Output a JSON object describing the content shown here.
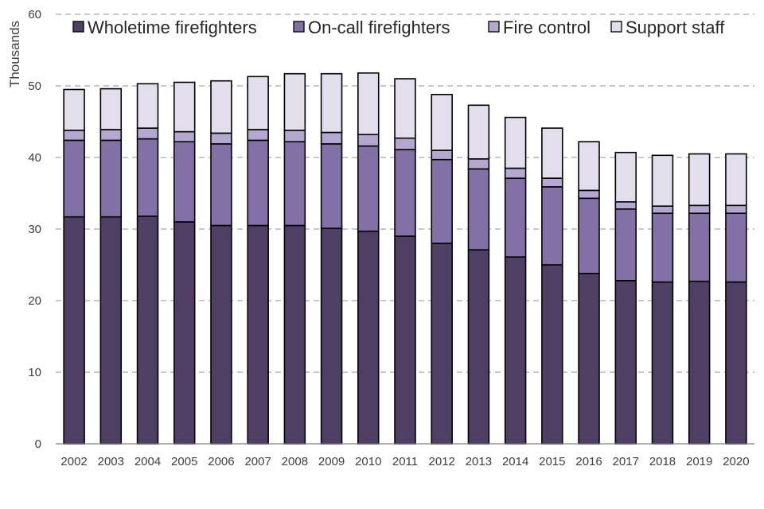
{
  "chart_data": {
    "type": "bar",
    "stacked": true,
    "title": "",
    "xlabel": "",
    "ylabel": "Thousands",
    "ylim": [
      0,
      60
    ],
    "yticks": [
      0,
      10,
      20,
      30,
      40,
      50,
      60
    ],
    "grid": true,
    "legend_position": "top",
    "categories": [
      "2002",
      "2003",
      "2004",
      "2005",
      "2006",
      "2007",
      "2008",
      "2009",
      "2010",
      "2011",
      "2012",
      "2013",
      "2014",
      "2015",
      "2016",
      "2017",
      "2018",
      "2019",
      "2020"
    ],
    "series": [
      {
        "name": "Wholetime firefighters",
        "color": "#4f3f64",
        "values": [
          31.7,
          31.7,
          31.8,
          31.0,
          30.5,
          30.5,
          30.5,
          30.1,
          29.7,
          29.0,
          28.0,
          27.1,
          26.1,
          25.0,
          23.8,
          22.8,
          22.6,
          22.7,
          22.6
        ]
      },
      {
        "name": "On-call firefighters",
        "color": "#8270a6",
        "values": [
          10.7,
          10.7,
          10.8,
          11.2,
          11.4,
          11.9,
          11.7,
          11.8,
          11.9,
          12.1,
          11.7,
          11.3,
          11.0,
          10.9,
          10.5,
          10.0,
          9.6,
          9.5,
          9.6
        ]
      },
      {
        "name": "Fire control",
        "color": "#b4a7d0",
        "values": [
          1.4,
          1.5,
          1.5,
          1.4,
          1.5,
          1.5,
          1.6,
          1.6,
          1.6,
          1.6,
          1.3,
          1.4,
          1.4,
          1.2,
          1.1,
          1.0,
          1.0,
          1.1,
          1.1
        ]
      },
      {
        "name": "Support staff",
        "color": "#e3deeb",
        "values": [
          5.7,
          5.7,
          6.2,
          6.9,
          7.3,
          7.4,
          7.9,
          8.2,
          8.6,
          8.3,
          7.8,
          7.5,
          7.1,
          7.0,
          6.8,
          6.9,
          7.1,
          7.2,
          7.2
        ]
      }
    ]
  }
}
